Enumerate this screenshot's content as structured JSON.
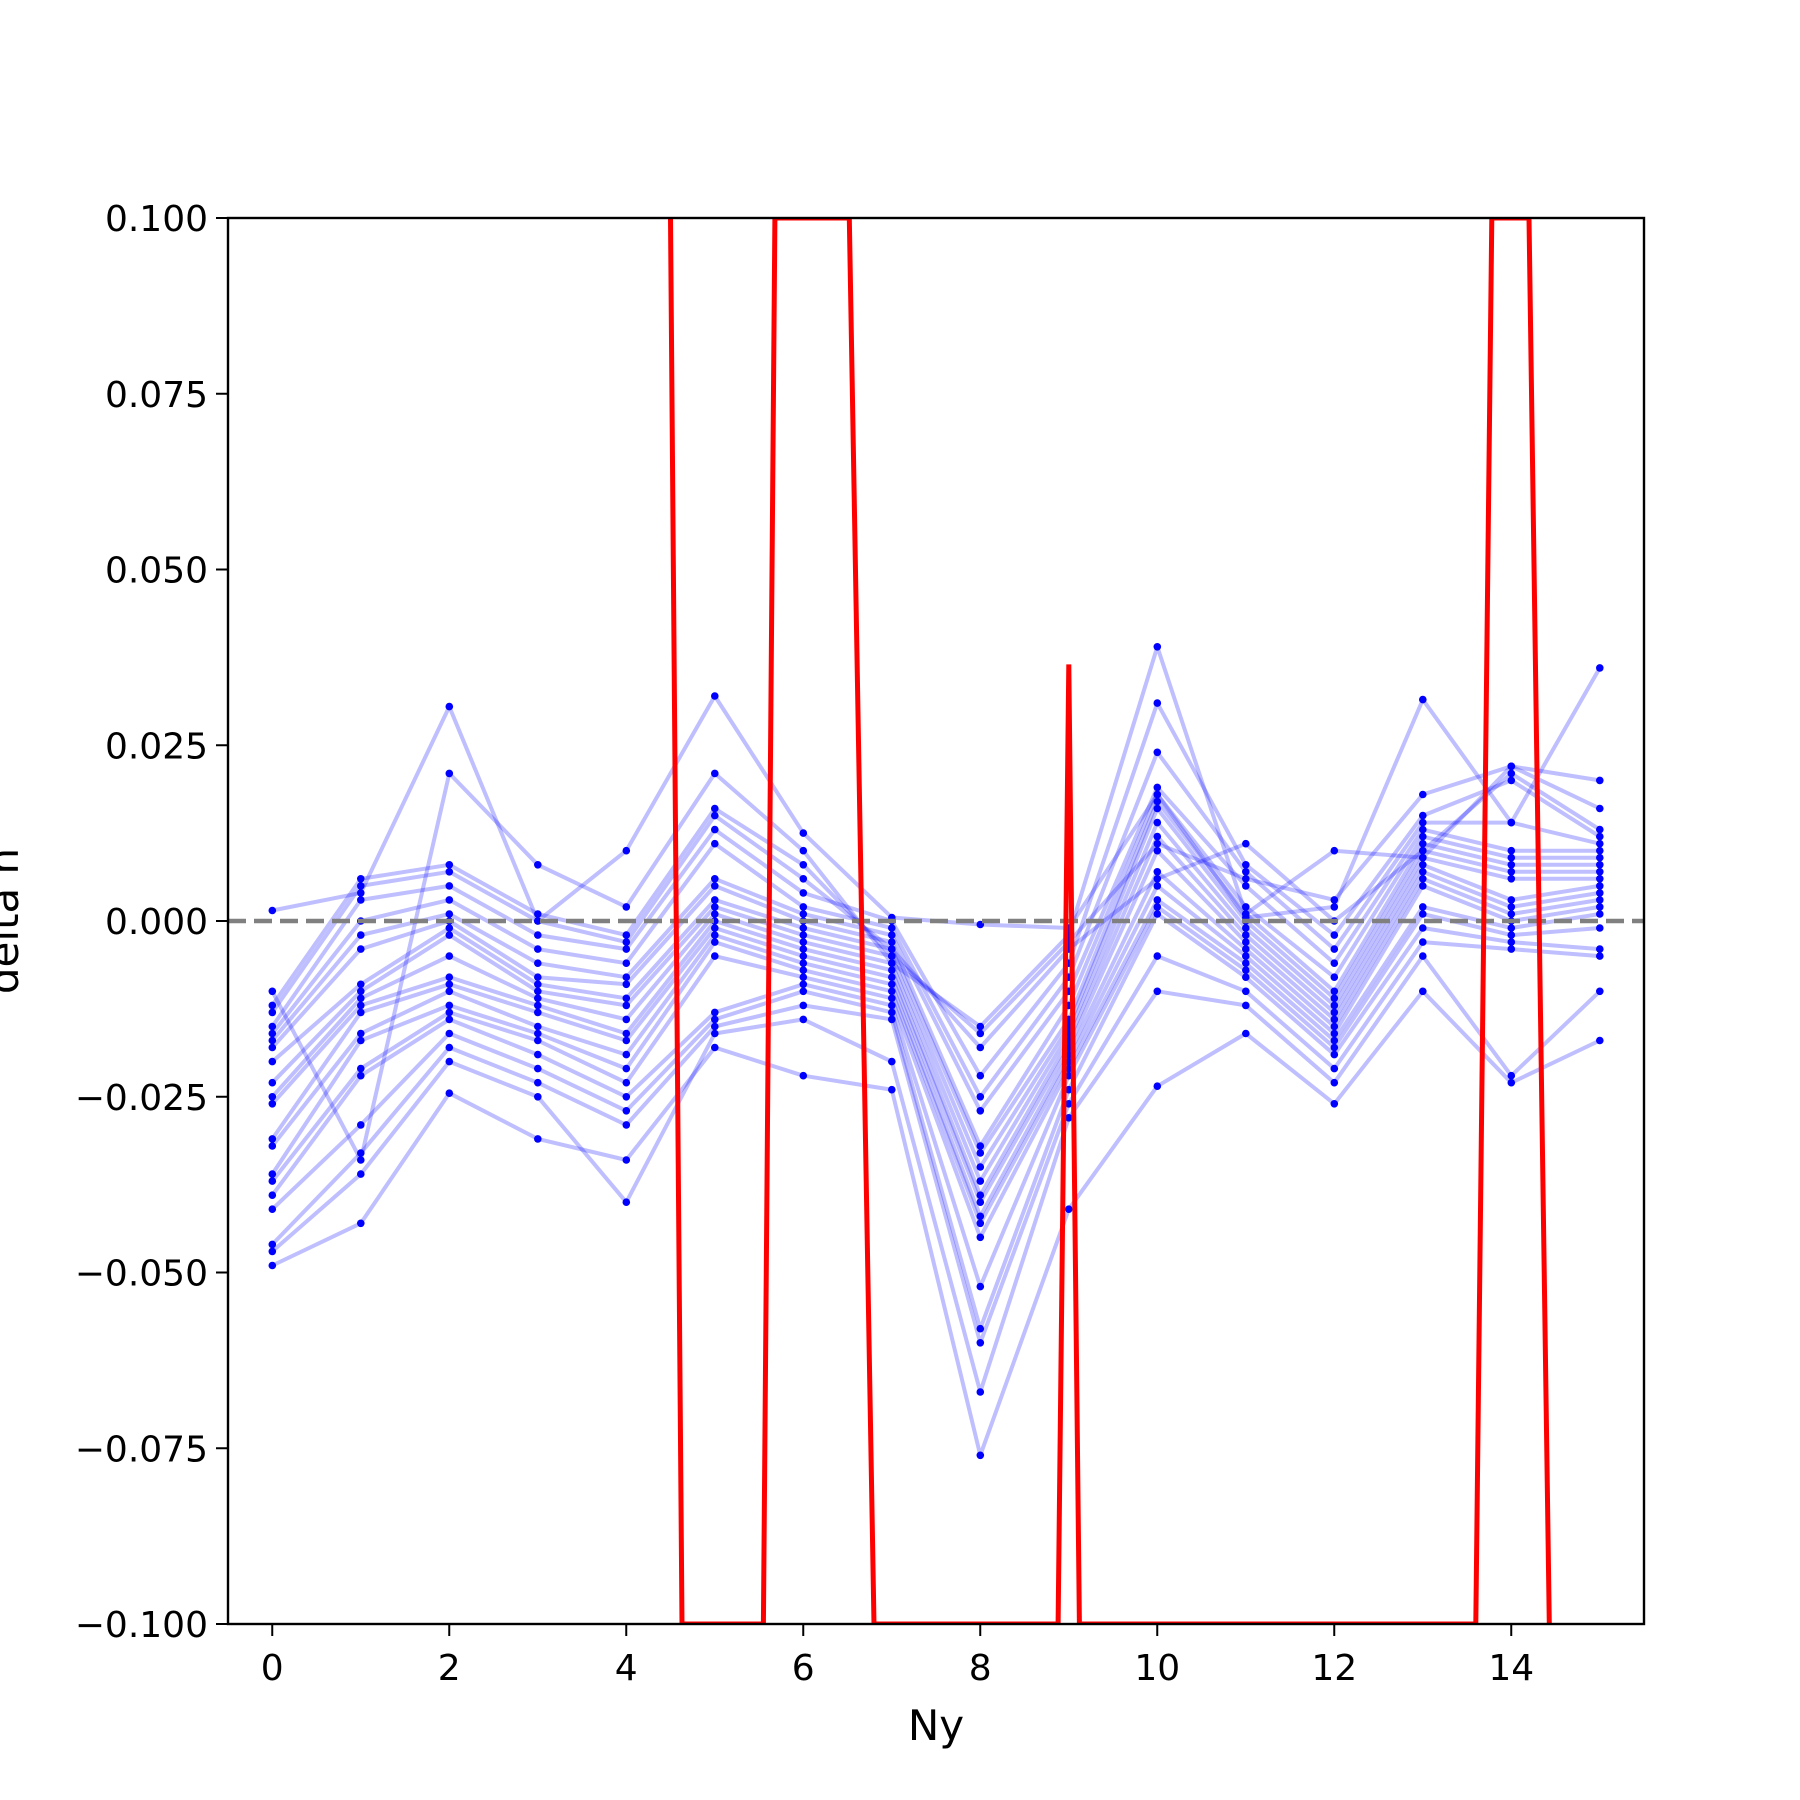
{
  "chart_data": {
    "type": "line",
    "title": "",
    "xlabel": "Ny",
    "ylabel": "delta h",
    "xlim": [
      -0.5,
      15.5
    ],
    "ylim": [
      -0.1,
      0.1
    ],
    "xticks": [
      0,
      2,
      4,
      6,
      8,
      10,
      12,
      14
    ],
    "xtick_labels": [
      "0",
      "2",
      "4",
      "6",
      "8",
      "10",
      "12",
      "14"
    ],
    "yticks": [
      -0.1,
      -0.075,
      -0.05,
      -0.025,
      0.0,
      0.025,
      0.05,
      0.075,
      0.1
    ],
    "ytick_labels": [
      "−0.100",
      "−0.075",
      "−0.050",
      "−0.025",
      "0.000",
      "0.025",
      "0.050",
      "0.075",
      "0.100"
    ],
    "grid": false,
    "legend": "none",
    "colors": {
      "samples": "#0000ff",
      "mean": "#ff0000",
      "reference": "#808080"
    },
    "reference_line": {
      "y": 0.0,
      "style": "dashed"
    },
    "x": [
      0,
      1,
      2,
      3,
      4,
      5,
      6,
      7,
      8,
      9,
      10,
      11,
      12,
      13,
      14,
      15
    ],
    "series": [
      {
        "values": [
          -0.049,
          -0.043,
          -0.0245,
          -0.031,
          -0.034,
          -0.018,
          -0.022,
          -0.024,
          -0.076,
          -0.041,
          -0.0235,
          -0.016,
          -0.026,
          -0.01,
          -0.023,
          -0.017
        ]
      },
      {
        "values": [
          -0.047,
          -0.036,
          -0.02,
          -0.025,
          -0.04,
          -0.016,
          -0.014,
          -0.02,
          -0.067,
          -0.028,
          -0.01,
          -0.012,
          -0.023,
          -0.005,
          -0.022,
          -0.01
        ]
      },
      {
        "values": [
          -0.046,
          -0.033,
          -0.018,
          -0.023,
          -0.029,
          -0.015,
          -0.012,
          -0.014,
          -0.06,
          -0.026,
          -0.005,
          -0.01,
          -0.021,
          -0.003,
          -0.004,
          -0.005
        ]
      },
      {
        "values": [
          -0.041,
          -0.029,
          -0.016,
          -0.021,
          -0.027,
          -0.014,
          -0.01,
          -0.013,
          -0.058,
          -0.024,
          0.001,
          -0.008,
          -0.019,
          -0.001,
          -0.003,
          -0.004
        ]
      },
      {
        "values": [
          -0.039,
          -0.022,
          -0.014,
          -0.019,
          -0.025,
          -0.013,
          -0.009,
          -0.012,
          -0.052,
          -0.022,
          0.002,
          -0.007,
          -0.018,
          0.001,
          -0.002,
          -0.001
        ]
      },
      {
        "values": [
          -0.037,
          -0.021,
          -0.013,
          -0.017,
          -0.023,
          -0.005,
          -0.008,
          -0.011,
          -0.045,
          -0.021,
          0.003,
          -0.006,
          -0.017,
          0.002,
          -0.001,
          0.001
        ]
      },
      {
        "values": [
          -0.036,
          -0.017,
          -0.012,
          -0.016,
          -0.021,
          -0.003,
          -0.007,
          -0.01,
          -0.043,
          -0.02,
          0.005,
          -0.005,
          -0.016,
          0.005,
          0.0,
          0.002
        ]
      },
      {
        "values": [
          -0.032,
          -0.016,
          -0.01,
          -0.015,
          -0.019,
          -0.002,
          -0.006,
          -0.009,
          -0.042,
          -0.019,
          0.007,
          -0.004,
          -0.015,
          0.006,
          0.001,
          0.003
        ]
      },
      {
        "values": [
          -0.031,
          -0.013,
          -0.009,
          -0.013,
          -0.017,
          -0.001,
          -0.005,
          -0.008,
          -0.04,
          -0.018,
          0.01,
          -0.003,
          -0.014,
          0.007,
          0.002,
          0.004
        ]
      },
      {
        "values": [
          -0.026,
          -0.012,
          -0.008,
          -0.012,
          -0.016,
          0.0,
          -0.004,
          -0.007,
          -0.039,
          -0.017,
          0.012,
          -0.002,
          -0.013,
          0.008,
          0.003,
          0.005
        ]
      },
      {
        "values": [
          -0.025,
          -0.011,
          -0.005,
          -0.011,
          -0.014,
          0.001,
          -0.003,
          -0.006,
          -0.037,
          -0.016,
          0.014,
          -0.001,
          -0.012,
          0.009,
          0.006,
          0.006
        ]
      },
      {
        "values": [
          -0.023,
          -0.01,
          -0.002,
          -0.01,
          -0.012,
          0.002,
          -0.002,
          -0.005,
          -0.035,
          -0.015,
          0.016,
          0.0,
          -0.011,
          0.01,
          0.007,
          0.007
        ]
      },
      {
        "values": [
          -0.02,
          -0.009,
          -0.001,
          -0.009,
          -0.011,
          0.003,
          -0.001,
          -0.004,
          -0.033,
          -0.014,
          0.017,
          0.001,
          -0.01,
          0.011,
          0.008,
          0.008
        ]
      },
      {
        "values": [
          -0.018,
          -0.004,
          0.0,
          -0.008,
          -0.009,
          0.005,
          0.0,
          -0.003,
          -0.032,
          -0.012,
          0.018,
          0.002,
          -0.008,
          0.012,
          0.009,
          0.009
        ]
      },
      {
        "values": [
          -0.017,
          -0.002,
          0.001,
          -0.006,
          -0.008,
          0.006,
          0.001,
          -0.002,
          -0.027,
          -0.01,
          0.019,
          0.005,
          -0.006,
          0.013,
          0.01,
          0.01
        ]
      },
      {
        "values": [
          -0.016,
          0.0,
          0.003,
          -0.004,
          -0.006,
          0.011,
          0.002,
          -0.001,
          -0.025,
          -0.008,
          0.024,
          0.007,
          -0.004,
          0.014,
          0.014,
          0.011
        ]
      },
      {
        "values": [
          -0.015,
          0.003,
          0.005,
          -0.002,
          -0.004,
          0.013,
          0.004,
          0.0,
          -0.022,
          -0.006,
          0.031,
          0.008,
          -0.002,
          0.015,
          0.02,
          0.012
        ]
      },
      {
        "values": [
          -0.013,
          0.005,
          0.007,
          0.0,
          -0.003,
          0.015,
          0.006,
          -0.004,
          -0.018,
          -0.004,
          0.006,
          0.011,
          0.0,
          0.01,
          0.021,
          0.013
        ]
      },
      {
        "values": [
          -0.012,
          0.006,
          0.008,
          0.001,
          -0.002,
          0.016,
          0.008,
          -0.005,
          -0.016,
          -0.003,
          0.011,
          0.006,
          0.003,
          0.018,
          0.022,
          0.016
        ]
      },
      {
        "values": [
          -0.01,
          -0.034,
          0.021,
          0.008,
          0.002,
          0.021,
          0.01,
          -0.006,
          -0.015,
          -0.002,
          0.039,
          0.001,
          0.01,
          0.009,
          0.022,
          0.02
        ]
      },
      {
        "values": [
          0.0015,
          0.004,
          0.0305,
          0.0,
          0.01,
          0.032,
          0.0125,
          0.0005,
          -0.0005,
          -0.001,
          0.018,
          0.0005,
          0.002,
          0.0315,
          0.014,
          0.036
        ]
      }
    ],
    "mean_series": {
      "points": [
        [
          4.5,
          0.1
        ],
        [
          4.63,
          -0.1
        ],
        [
          5.55,
          -0.1
        ],
        [
          5.68,
          0.1
        ],
        [
          6.52,
          0.1
        ],
        [
          6.8,
          -0.1
        ],
        [
          8.88,
          -0.1
        ],
        [
          9.0,
          0.0365
        ],
        [
          9.12,
          -0.1
        ],
        [
          13.6,
          -0.1
        ],
        [
          13.78,
          0.1
        ],
        [
          14.2,
          0.1
        ],
        [
          14.43,
          -0.1
        ]
      ]
    }
  }
}
